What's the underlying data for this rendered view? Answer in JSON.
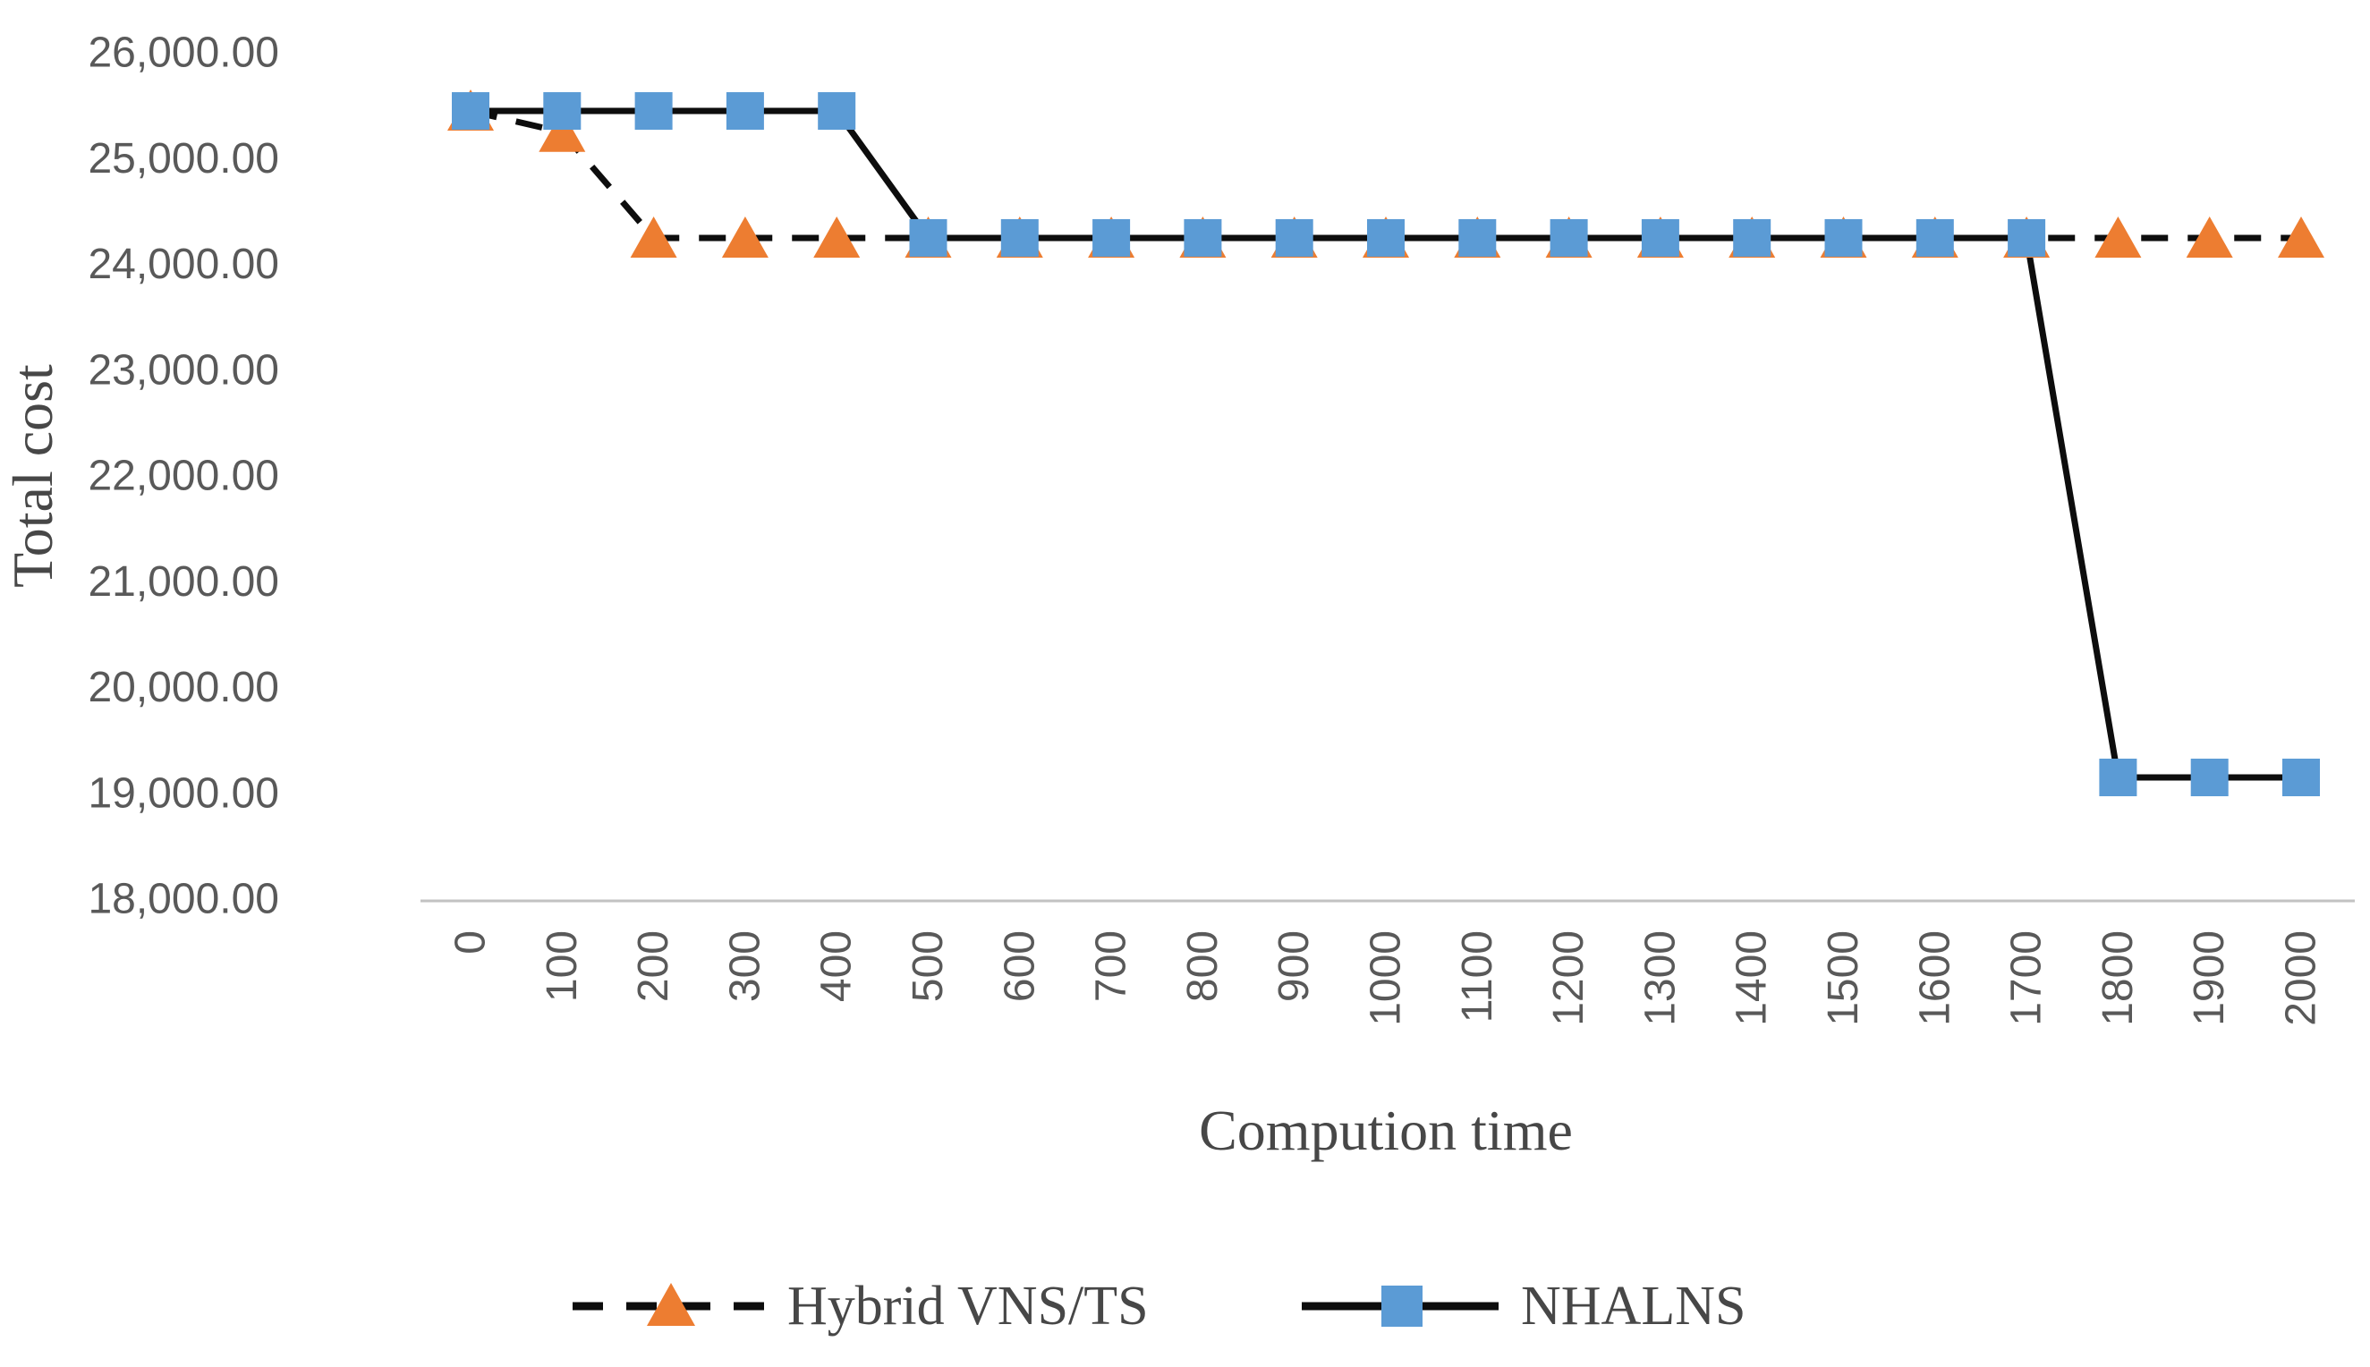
{
  "chart_data": {
    "type": "line",
    "title": "",
    "xlabel": "Compution time",
    "ylabel": "Total cost",
    "ylim": [
      18000,
      26000
    ],
    "grid": false,
    "legend_position": "bottom",
    "axis_color": "#c2c2c2",
    "tick_label_color": "#595959",
    "title_color": "#474747",
    "y_ticks": [
      {
        "label": "26,000.00",
        "value": 26000
      },
      {
        "label": "25,000.00",
        "value": 25000
      },
      {
        "label": "24,000.00",
        "value": 24000
      },
      {
        "label": "23,000.00",
        "value": 23000
      },
      {
        "label": "22,000.00",
        "value": 22000
      },
      {
        "label": "21,000.00",
        "value": 21000
      },
      {
        "label": "20,000.00",
        "value": 20000
      },
      {
        "label": "19,000.00",
        "value": 19000
      },
      {
        "label": "18,000.00",
        "value": 18000
      }
    ],
    "x_tick_labels": [
      "0",
      "100",
      "200",
      "300",
      "400",
      "500",
      "600",
      "700",
      "800",
      "900",
      "1000",
      "1100",
      "1200",
      "1300",
      "1400",
      "1500",
      "1600",
      "1700",
      "1800",
      "1900",
      "2000"
    ],
    "x_values": [
      0,
      100,
      200,
      300,
      400,
      500,
      600,
      700,
      800,
      900,
      1000,
      1100,
      1200,
      1300,
      1400,
      1500,
      1600,
      1700,
      1800,
      1900,
      2000
    ],
    "series": [
      {
        "name": "Hybrid VNS/TS",
        "marker": "triangle",
        "marker_color": "#ED7D31",
        "line_style": "dashed",
        "line_color": "#0d0d0d",
        "values": [
          25450,
          25250,
          24250,
          24250,
          24250,
          24250,
          24250,
          24250,
          24250,
          24250,
          24250,
          24250,
          24250,
          24250,
          24250,
          24250,
          24250,
          24250,
          24250,
          24250,
          24250
        ]
      },
      {
        "name": "NHALNS",
        "marker": "square",
        "marker_color": "#5B9BD5",
        "line_style": "solid",
        "line_color": "#0d0d0d",
        "values": [
          25450,
          25450,
          25450,
          25450,
          25450,
          24250,
          24250,
          24250,
          24250,
          24250,
          24250,
          24250,
          24250,
          24250,
          24250,
          24250,
          24250,
          24250,
          19150,
          19150,
          19150
        ]
      }
    ]
  }
}
